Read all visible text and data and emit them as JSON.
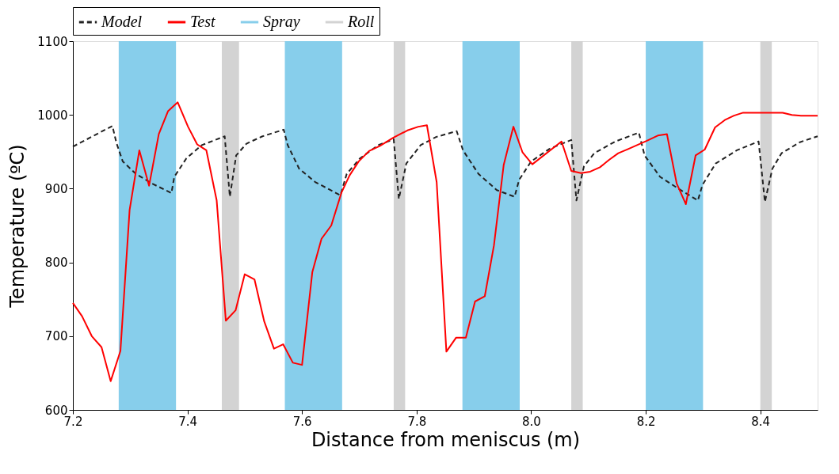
{
  "chart_data": {
    "type": "line",
    "xlabel": "Distance from meniscus (m)",
    "ylabel": "Temperature (ºC)",
    "xlim": [
      7.2,
      8.5
    ],
    "ylim": [
      600,
      1100
    ],
    "xticks": [
      7.2,
      7.4,
      7.6,
      7.8,
      {
        "value": 8,
        "label": "8.0"
      },
      8.2,
      8.4
    ],
    "yticks": [
      600,
      700,
      800,
      900,
      1000,
      1100
    ],
    "grid": false,
    "legend": "top",
    "marker": "none",
    "series": [
      {
        "name": "Model",
        "color": "#222222",
        "line_style": "dashed",
        "x": [
          7.2,
          7.269,
          7.276,
          7.287,
          7.31,
          7.338,
          7.372,
          7.377,
          7.398,
          7.425,
          7.465,
          7.474,
          7.485,
          7.503,
          7.531,
          7.568,
          7.575,
          7.595,
          7.623,
          7.667,
          7.678,
          7.701,
          7.733,
          7.76,
          7.769,
          7.782,
          7.807,
          7.834,
          7.87,
          7.881,
          7.908,
          7.94,
          7.971,
          7.979,
          8.0,
          8.032,
          8.07,
          8.079,
          8.092,
          8.11,
          8.147,
          8.188,
          8.198,
          8.225,
          8.257,
          8.291,
          8.299,
          8.322,
          8.359,
          8.397,
          8.408,
          8.421,
          8.437,
          8.469,
          8.5
        ],
        "values": [
          957,
          985,
          962,
          937,
          920,
          907,
          894,
          916,
          941,
          959,
          971,
          889,
          945,
          961,
          971,
          980,
          959,
          927,
          909,
          891,
          920,
          941,
          959,
          967,
          886,
          934,
          959,
          970,
          978,
          952,
          920,
          898,
          889,
          912,
          937,
          954,
          966,
          884,
          930,
          948,
          964,
          976,
          945,
          916,
          900,
          884,
          905,
          934,
          952,
          964,
          882,
          927,
          948,
          963,
          971
        ]
      },
      {
        "name": "Test",
        "color": "#ff0000",
        "line_style": "solid",
        "x": [
          7.2,
          7.216,
          7.233,
          7.25,
          7.266,
          7.283,
          7.299,
          7.316,
          7.333,
          7.35,
          7.366,
          7.383,
          7.401,
          7.417,
          7.433,
          7.451,
          7.467,
          7.484,
          7.5,
          7.517,
          7.534,
          7.551,
          7.567,
          7.584,
          7.6,
          7.618,
          7.634,
          7.651,
          7.669,
          7.683,
          7.699,
          7.717,
          7.736,
          7.759,
          7.784,
          7.803,
          7.818,
          7.835,
          7.852,
          7.869,
          7.886,
          7.902,
          7.919,
          7.935,
          7.952,
          7.969,
          7.985,
          8.002,
          8.053,
          8.07,
          8.087,
          8.103,
          8.12,
          8.136,
          8.152,
          8.17,
          8.202,
          8.221,
          8.237,
          8.254,
          8.27,
          8.287,
          8.303,
          8.321,
          8.338,
          8.354,
          8.37,
          8.439,
          8.455,
          8.471,
          8.5
        ],
        "values": [
          745,
          727,
          700,
          685,
          639,
          680,
          871,
          952,
          904,
          974,
          1005,
          1017,
          984,
          960,
          952,
          884,
          721,
          735,
          784,
          777,
          720,
          683,
          689,
          664,
          661,
          787,
          832,
          850,
          895,
          918,
          937,
          951,
          958,
          969,
          979,
          984,
          986,
          909,
          679,
          698,
          698,
          747,
          754,
          823,
          932,
          984,
          949,
          933,
          964,
          924,
          921,
          923,
          929,
          939,
          948,
          954,
          965,
          972,
          974,
          907,
          879,
          945,
          953,
          983,
          993,
          999,
          1003,
          1003,
          1000,
          999,
          999
        ]
      }
    ],
    "bands": [
      {
        "axis": "x",
        "from": 7.28,
        "to": 7.38,
        "label": "Spray",
        "color": "#87ceeb"
      },
      {
        "axis": "x",
        "from": 7.57,
        "to": 7.67,
        "color": "#87ceeb"
      },
      {
        "axis": "x",
        "from": 7.88,
        "to": 7.98,
        "color": "#87ceeb"
      },
      {
        "axis": "x",
        "from": 8.2,
        "to": 8.3,
        "color": "#87ceeb"
      },
      {
        "axis": "x",
        "from": 7.46,
        "to": 7.49,
        "label": "Roll",
        "color": "#d3d3d3"
      },
      {
        "axis": "x",
        "from": 7.76,
        "to": 7.78,
        "color": "#d3d3d3"
      },
      {
        "axis": "x",
        "from": 8.07,
        "to": 8.09,
        "color": "#d3d3d3"
      },
      {
        "axis": "x",
        "from": 8.4,
        "to": 8.42,
        "color": "#d3d3d3"
      }
    ]
  }
}
